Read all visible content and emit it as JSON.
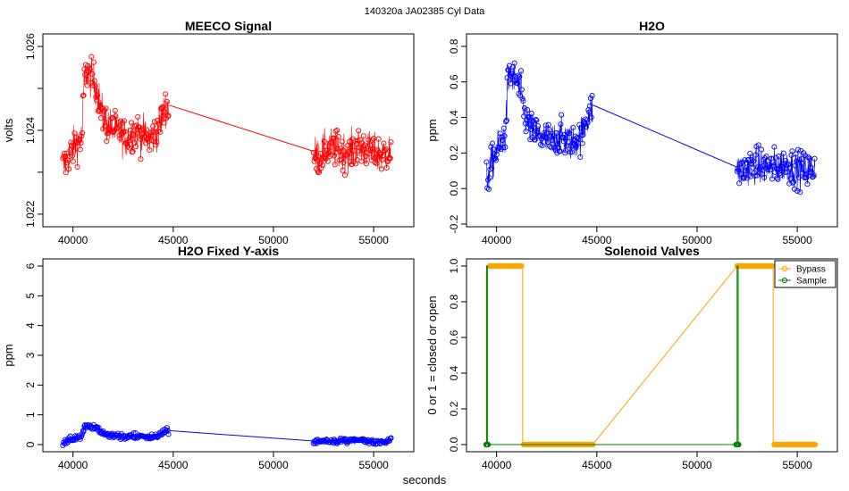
{
  "figure": {
    "suptitle": "140320a    JA02385   Cyl Data",
    "xlabel": "seconds"
  },
  "chart_data": [
    {
      "id": "meeco",
      "type": "scatter",
      "title": "MEECO Signal",
      "xlabel": "",
      "ylabel": "volts",
      "xlim": [
        38500,
        57000
      ],
      "ylim": [
        1.0217,
        1.0263
      ],
      "xticks": [
        40000,
        45000,
        50000,
        55000
      ],
      "xtick_labels": [
        "40000",
        "45000",
        "50000",
        "55000"
      ],
      "yticks": [
        1.022,
        1.023,
        1.024,
        1.025,
        1.026
      ],
      "ytick_labels": [
        "1.022",
        "",
        "1.024",
        "",
        "1.026"
      ],
      "color": "#ff0000",
      "series": [
        {
          "name": "segment-1",
          "x": [
            39500,
            39700,
            39900,
            40150,
            40450,
            40550,
            40650,
            40800,
            41000,
            41200,
            41400,
            41500,
            41800,
            42100,
            42400,
            42700,
            43000,
            43400,
            43800,
            44100,
            44300,
            44450,
            44600,
            44800
          ],
          "y": [
            1.0231,
            1.0233,
            1.0235,
            1.0237,
            1.0238,
            1.0251,
            1.0254,
            1.0253,
            1.0252,
            1.025,
            1.0245,
            1.0243,
            1.0241,
            1.024,
            1.0239,
            1.0238,
            1.024,
            1.0239,
            1.0238,
            1.0239,
            1.0241,
            1.0243,
            1.0245,
            1.0246
          ],
          "noise": 0.00045
        },
        {
          "name": "segment-2",
          "x": [
            52000,
            52300,
            52800,
            53300,
            53800,
            54300,
            54800,
            55300,
            55900
          ],
          "y": [
            1.0234,
            1.0234,
            1.0236,
            1.0235,
            1.0235,
            1.0236,
            1.0235,
            1.0234,
            1.0235
          ],
          "noise": 0.00045
        }
      ],
      "connector": {
        "x": [
          44800,
          52000
        ],
        "y": [
          1.0246,
          1.0235
        ]
      }
    },
    {
      "id": "h2o",
      "type": "scatter",
      "title": "H2O",
      "xlabel": "",
      "ylabel": "ppm",
      "xlim": [
        38500,
        57000
      ],
      "ylim": [
        -0.215,
        0.87
      ],
      "xticks": [
        40000,
        45000,
        50000,
        55000
      ],
      "xtick_labels": [
        "40000",
        "45000",
        "50000",
        "55000"
      ],
      "yticks": [
        -0.2,
        0.0,
        0.2,
        0.4,
        0.6,
        0.8
      ],
      "ytick_labels": [
        "-0.2",
        "0.0",
        "0.2",
        "0.4",
        "0.6",
        "0.8"
      ],
      "color": "#0000ff",
      "series": [
        {
          "name": "segment-1",
          "x": [
            39500,
            39700,
            39900,
            40150,
            40450,
            40550,
            40650,
            40800,
            41000,
            41200,
            41400,
            41500,
            41800,
            42100,
            42400,
            42700,
            43000,
            43400,
            43800,
            44100,
            44300,
            44450,
            44600,
            44800
          ],
          "y": [
            0.05,
            0.12,
            0.18,
            0.25,
            0.3,
            0.58,
            0.65,
            0.62,
            0.6,
            0.55,
            0.42,
            0.38,
            0.32,
            0.3,
            0.28,
            0.26,
            0.3,
            0.28,
            0.26,
            0.28,
            0.32,
            0.38,
            0.42,
            0.45
          ],
          "noise": 0.1
        },
        {
          "name": "segment-2",
          "x": [
            52000,
            52300,
            52800,
            53300,
            53800,
            54300,
            54800,
            55300,
            55900
          ],
          "y": [
            0.1,
            0.1,
            0.14,
            0.12,
            0.12,
            0.14,
            0.12,
            0.1,
            0.12
          ],
          "noise": 0.1
        }
      ],
      "connector": {
        "x": [
          44800,
          52000
        ],
        "y": [
          0.47,
          0.12
        ]
      }
    },
    {
      "id": "h2o-fixed",
      "type": "scatter",
      "title": "H2O Fixed Y-axis",
      "xlabel": "",
      "ylabel": "ppm",
      "xlim": [
        38500,
        57000
      ],
      "ylim": [
        -0.24,
        6.24
      ],
      "xticks": [
        40000,
        45000,
        50000,
        55000
      ],
      "xtick_labels": [
        "40000",
        "45000",
        "50000",
        "55000"
      ],
      "yticks": [
        0,
        1,
        2,
        3,
        4,
        5,
        6
      ],
      "ytick_labels": [
        "0",
        "1",
        "2",
        "3",
        "4",
        "5",
        "6"
      ],
      "color": "#0000ff",
      "series": [
        {
          "name": "segment-1",
          "x": [
            39500,
            39700,
            39900,
            40150,
            40450,
            40550,
            40650,
            40800,
            41000,
            41200,
            41400,
            41500,
            41800,
            42100,
            42400,
            42700,
            43000,
            43400,
            43800,
            44100,
            44300,
            44450,
            44600,
            44800
          ],
          "y": [
            0.05,
            0.12,
            0.18,
            0.25,
            0.3,
            0.58,
            0.65,
            0.62,
            0.6,
            0.55,
            0.42,
            0.38,
            0.32,
            0.3,
            0.28,
            0.26,
            0.3,
            0.28,
            0.26,
            0.28,
            0.32,
            0.38,
            0.42,
            0.45
          ],
          "noise": 0.1
        },
        {
          "name": "segment-2",
          "x": [
            52000,
            52300,
            52800,
            53300,
            53800,
            54300,
            54800,
            55300,
            55900
          ],
          "y": [
            0.1,
            0.1,
            0.14,
            0.12,
            0.12,
            0.14,
            0.12,
            0.1,
            0.12
          ],
          "noise": 0.1
        }
      ],
      "connector": {
        "x": [
          44800,
          52000
        ],
        "y": [
          0.47,
          0.12
        ]
      }
    },
    {
      "id": "solenoid",
      "type": "line",
      "title": "Solenoid Valves",
      "xlabel": "",
      "ylabel": "0 or 1 = closed or open",
      "xlim": [
        38500,
        57000
      ],
      "ylim": [
        -0.04,
        1.04
      ],
      "xticks": [
        40000,
        45000,
        50000,
        55000
      ],
      "xtick_labels": [
        "40000",
        "45000",
        "50000",
        "55000"
      ],
      "yticks": [
        0.0,
        0.2,
        0.4,
        0.6,
        0.8,
        1.0
      ],
      "ytick_labels": [
        "0.0",
        "0.2",
        "0.4",
        "0.6",
        "0.8",
        "1.0"
      ],
      "legend": {
        "position": "top-right",
        "entries": [
          "Bypass",
          "Sample"
        ]
      },
      "series": [
        {
          "name": "Bypass",
          "color": "#ffa500",
          "steps": [
            [
              39500,
              0
            ],
            [
              39500,
              1
            ],
            [
              41300,
              1
            ],
            [
              41300,
              0
            ],
            [
              44800,
              0
            ],
            [
              52000,
              1
            ],
            [
              53800,
              1
            ],
            [
              53800,
              0
            ],
            [
              55900,
              0
            ]
          ],
          "dense_runs": [
            [
              39650,
              41250,
              1
            ],
            [
              41350,
              44800,
              0
            ],
            [
              52000,
              53750,
              1
            ],
            [
              53850,
              55900,
              0
            ]
          ]
        },
        {
          "name": "Sample",
          "color": "#008000",
          "steps": [
            [
              39500,
              0
            ],
            [
              39500,
              1
            ],
            [
              39550,
              1
            ],
            [
              39550,
              0
            ],
            [
              44800,
              0
            ],
            [
              52000,
              0
            ],
            [
              52000,
              1
            ],
            [
              52050,
              1
            ],
            [
              52050,
              0
            ]
          ],
          "dense_runs": [
            [
              39480,
              39570,
              0
            ],
            [
              51950,
              52080,
              0
            ]
          ]
        }
      ]
    }
  ]
}
